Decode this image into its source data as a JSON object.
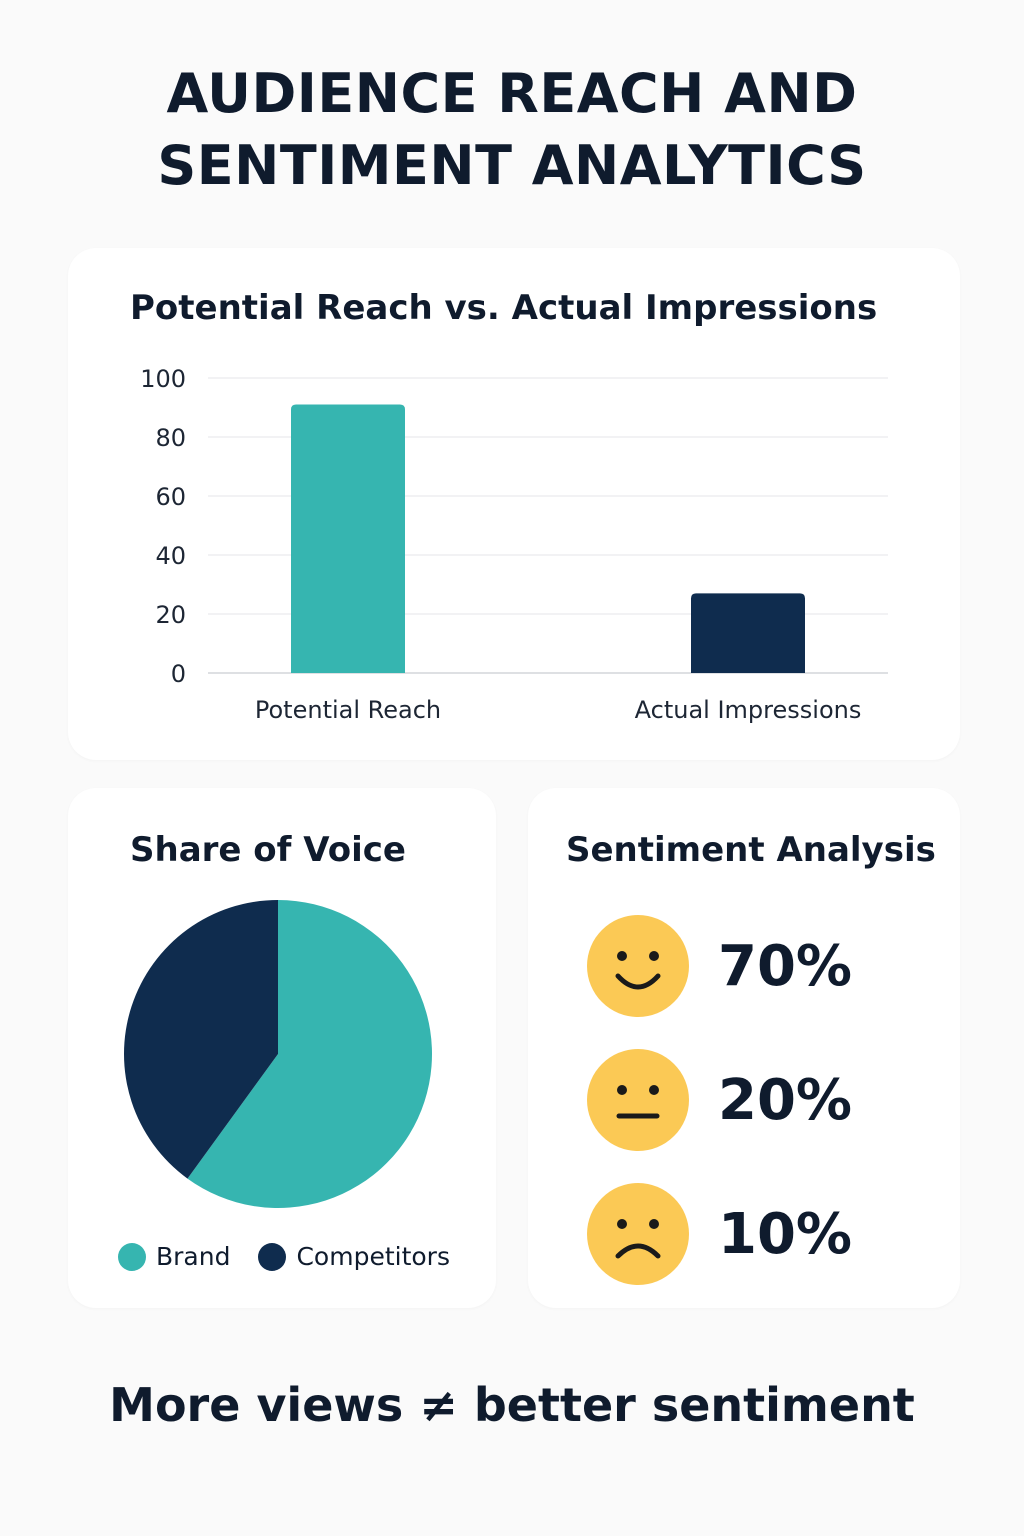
{
  "title_line1": "AUDIENCE REACH AND",
  "title_line2": "SENTIMENT ANALYTICS",
  "footer": "More views ≠ better sentiment",
  "colors": {
    "teal": "#36b5b0",
    "navy": "#0f2c4e",
    "face": "#fbc955",
    "ink": "#0f1b2d"
  },
  "chart_data": [
    {
      "type": "bar",
      "title": "Potential Reach vs. Actual Impressions",
      "categories": [
        "Potential Reach",
        "Actual Impressions"
      ],
      "values": [
        91,
        27
      ],
      "colors": [
        "#36b5b0",
        "#0f2c4e"
      ],
      "ylim": [
        0,
        100
      ],
      "yticks": [
        0,
        20,
        40,
        60,
        80,
        100
      ],
      "grid": true
    },
    {
      "type": "pie",
      "title": "Share of Voice",
      "labels": [
        "Brand",
        "Competitors"
      ],
      "values": [
        60,
        40
      ],
      "colors": [
        "#36b5b0",
        "#0f2c4e"
      ],
      "legend": "bottom"
    }
  ],
  "sentiment": {
    "title": "Sentiment Analysis",
    "items": [
      {
        "face": "positive-face-icon",
        "value": "70%"
      },
      {
        "face": "neutral-face-icon",
        "value": "20%"
      },
      {
        "face": "negative-face-icon",
        "value": "10%"
      }
    ]
  }
}
